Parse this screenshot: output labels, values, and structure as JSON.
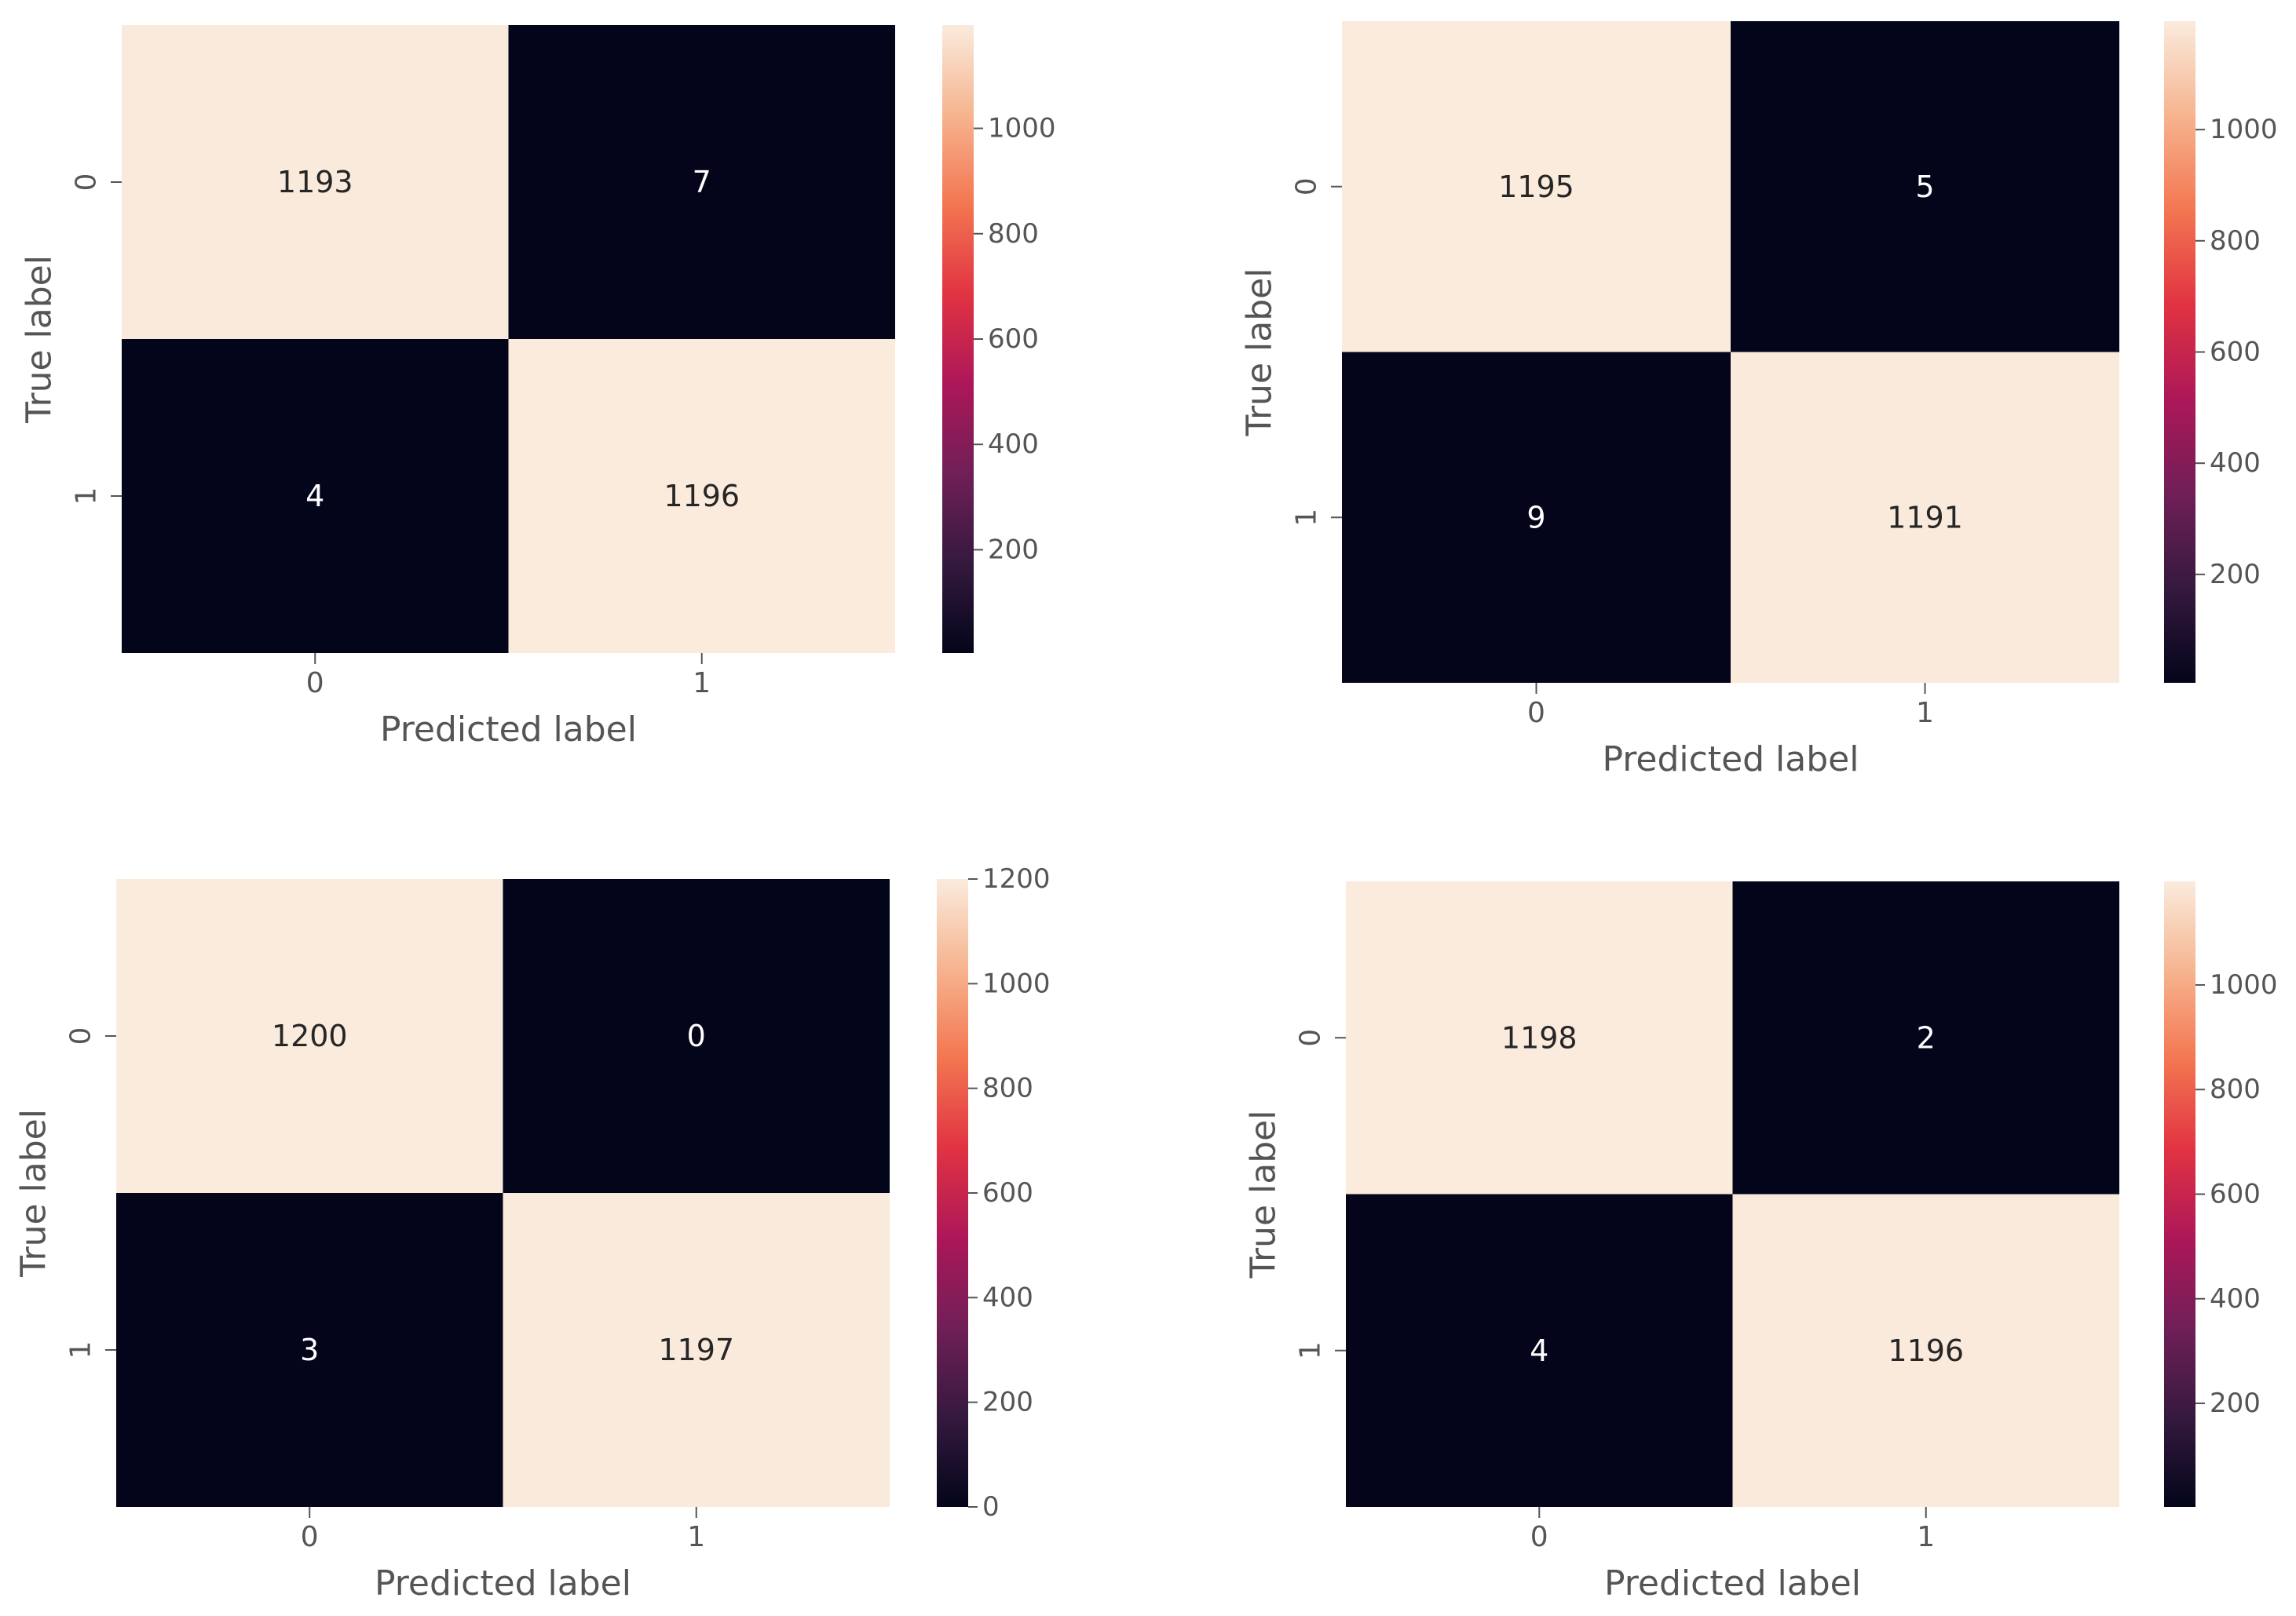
{
  "chart_data": [
    {
      "type": "heatmap",
      "title": "",
      "xlabel": "Predicted label",
      "ylabel": "True label",
      "x_categories": [
        "0",
        "1"
      ],
      "y_categories": [
        "0",
        "1"
      ],
      "values": [
        [
          1193,
          7
        ],
        [
          4,
          1196
        ]
      ],
      "colorbar": {
        "cmap": "rocket",
        "vmin": 4,
        "vmax": 1196,
        "ticks": [
          200,
          400,
          600,
          800,
          1000
        ]
      }
    },
    {
      "type": "heatmap",
      "title": "",
      "xlabel": "Predicted label",
      "ylabel": "True label",
      "x_categories": [
        "0",
        "1"
      ],
      "y_categories": [
        "0",
        "1"
      ],
      "values": [
        [
          1195,
          5
        ],
        [
          9,
          1191
        ]
      ],
      "colorbar": {
        "cmap": "rocket",
        "vmin": 5,
        "vmax": 1195,
        "ticks": [
          200,
          400,
          600,
          800,
          1000
        ]
      }
    },
    {
      "type": "heatmap",
      "title": "",
      "xlabel": "Predicted label",
      "ylabel": "True label",
      "x_categories": [
        "0",
        "1"
      ],
      "y_categories": [
        "0",
        "1"
      ],
      "values": [
        [
          1200,
          0
        ],
        [
          3,
          1197
        ]
      ],
      "colorbar": {
        "cmap": "rocket",
        "vmin": 0,
        "vmax": 1200,
        "ticks": [
          0,
          200,
          400,
          600,
          800,
          1000,
          1200
        ]
      }
    },
    {
      "type": "heatmap",
      "title": "",
      "xlabel": "Predicted label",
      "ylabel": "True label",
      "x_categories": [
        "0",
        "1"
      ],
      "y_categories": [
        "0",
        "1"
      ],
      "values": [
        [
          1198,
          2
        ],
        [
          4,
          1196
        ]
      ],
      "colorbar": {
        "cmap": "rocket",
        "vmin": 2,
        "vmax": 1198,
        "ticks": [
          200,
          400,
          600,
          800,
          1000
        ]
      }
    }
  ],
  "colors": {
    "cmap_stops": [
      "#03051a",
      "#35193e",
      "#701f57",
      "#ad1759",
      "#e13342",
      "#f37651",
      "#f6b48f",
      "#faebdd"
    ],
    "text_light": "#ffffff",
    "text_dark": "#262626",
    "axis_text": "#555555"
  }
}
